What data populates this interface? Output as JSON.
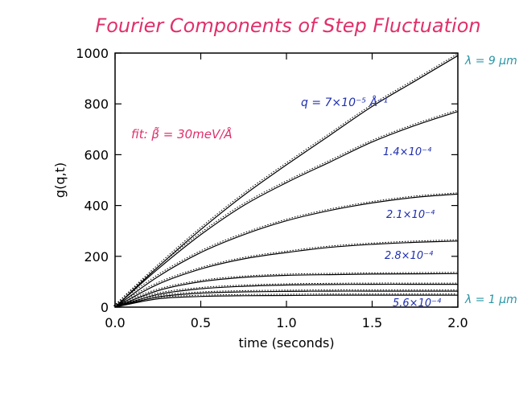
{
  "chart_data": {
    "type": "line",
    "title": "Fourier Components of Step Fluctuation",
    "xlabel": "time (seconds)",
    "ylabel": "g(q,t)",
    "xlim": [
      0.0,
      2.0
    ],
    "ylim": [
      0,
      1000
    ],
    "xticks": [
      "0.0",
      "0.5",
      "1.0",
      "1.5",
      "2.0"
    ],
    "xtick_values": [
      0.0,
      0.5,
      1.0,
      1.5,
      2.0
    ],
    "yticks": [
      "0",
      "200",
      "400",
      "600",
      "800",
      "1000"
    ],
    "ytick_values": [
      0,
      200,
      400,
      600,
      800,
      1000
    ],
    "grid": false,
    "fit_note": "fit: β̃ = 30meV/Å",
    "series": [
      {
        "label": "q = 7×10⁻⁵ Å⁻¹",
        "x": [
          0,
          0.25,
          0.5,
          0.75,
          1.0,
          1.25,
          1.5,
          1.75,
          2.0
        ],
        "values": [
          0,
          158,
          305,
          440,
          560,
          675,
          790,
          890,
          990
        ]
      },
      {
        "label": "1.4×10⁻⁴",
        "x": [
          0,
          0.25,
          0.5,
          0.75,
          1.0,
          1.25,
          1.5,
          1.75,
          2.0
        ],
        "values": [
          0,
          150,
          285,
          400,
          490,
          570,
          650,
          715,
          770
        ]
      },
      {
        "label": "2.1×10⁻⁴",
        "x": [
          0,
          0.25,
          0.5,
          0.75,
          1.0,
          1.25,
          1.5,
          1.75,
          2.0
        ],
        "values": [
          0,
          120,
          215,
          285,
          340,
          380,
          410,
          432,
          445
        ]
      },
      {
        "label": "2.8×10⁻⁴",
        "x": [
          0,
          0.25,
          0.5,
          0.75,
          1.0,
          1.25,
          1.5,
          1.75,
          2.0
        ],
        "values": [
          0,
          90,
          150,
          190,
          215,
          235,
          247,
          255,
          260
        ]
      },
      {
        "label": "",
        "x": [
          0,
          0.25,
          0.5,
          0.75,
          1.0,
          1.25,
          1.5,
          1.75,
          2.0
        ],
        "values": [
          0,
          65,
          100,
          117,
          125,
          128,
          130,
          131,
          132
        ]
      },
      {
        "label": "",
        "x": [
          0,
          0.25,
          0.5,
          0.75,
          1.0,
          1.25,
          1.5,
          1.75,
          2.0
        ],
        "values": [
          0,
          50,
          72,
          82,
          87,
          89,
          90,
          90,
          90
        ]
      },
      {
        "label": "",
        "x": [
          0,
          0.25,
          0.5,
          0.75,
          1.0,
          1.25,
          1.5,
          1.75,
          2.0
        ],
        "values": [
          0,
          40,
          55,
          60,
          62,
          63,
          63,
          63,
          63
        ]
      },
      {
        "label": "5.6×10⁻⁴",
        "x": [
          0,
          0.25,
          0.5,
          0.75,
          1.0,
          1.25,
          1.5,
          1.75,
          2.0
        ],
        "values": [
          0,
          33,
          42,
          45,
          46,
          47,
          47,
          47,
          47
        ]
      }
    ],
    "annotations": {
      "lambda_top": "λ = 9 μm",
      "lambda_bottom": "λ = 1 μm"
    }
  },
  "colors": {
    "title": "#e0306a",
    "fit_note": "#e0306a",
    "series_labels": "#1f2fb0",
    "lambda": "#2a95a5",
    "curve": "#000000",
    "axis": "#000000"
  }
}
